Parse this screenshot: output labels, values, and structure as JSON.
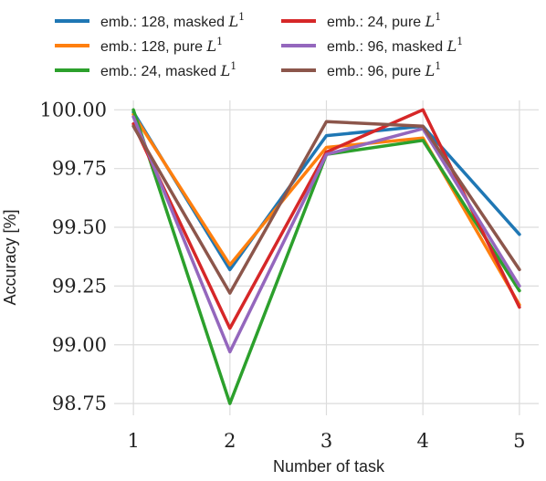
{
  "chart_data": {
    "type": "line",
    "title": "",
    "xlabel": "Number of task",
    "ylabel": "Accuracy [%]",
    "x": [
      1,
      2,
      3,
      4,
      5
    ],
    "x_tick_labels": [
      "1",
      "2",
      "3",
      "4",
      "5"
    ],
    "y_tick_labels": [
      "98.75",
      "99.00",
      "99.25",
      "99.50",
      "99.75",
      "100.00"
    ],
    "yticks": [
      98.75,
      99.0,
      99.25,
      99.5,
      99.75,
      100.0
    ],
    "xlim": [
      0.8,
      5.2
    ],
    "ylim": [
      98.7,
      100.04
    ],
    "grid": true,
    "legend_placement": "top, above plot, two columns",
    "series": [
      {
        "name": "emb.: 128, masked",
        "label_math": "L",
        "label_sup": "1",
        "color": "#1f77b4",
        "values": [
          99.99,
          99.32,
          99.89,
          99.93,
          99.47
        ]
      },
      {
        "name": "emb.: 128, pure",
        "label_math": "L",
        "label_sup": "1",
        "color": "#ff7f0e",
        "values": [
          99.98,
          99.34,
          99.84,
          99.88,
          99.17
        ]
      },
      {
        "name": "emb.: 24, masked",
        "label_math": "L",
        "label_sup": "1",
        "color": "#2ca02c",
        "values": [
          100.0,
          98.75,
          99.81,
          99.87,
          99.23
        ]
      },
      {
        "name": "emb.: 24, pure",
        "label_math": "L",
        "label_sup": "1",
        "color": "#d62728",
        "values": [
          99.94,
          99.07,
          99.82,
          100.0,
          99.16
        ]
      },
      {
        "name": "emb.: 96, masked",
        "label_math": "L",
        "label_sup": "1",
        "color": "#9467bd",
        "values": [
          99.97,
          98.97,
          99.81,
          99.92,
          99.25
        ]
      },
      {
        "name": "emb.: 96, pure",
        "label_math": "L",
        "label_sup": "1",
        "color": "#8c564b",
        "values": [
          99.93,
          99.22,
          99.95,
          99.93,
          99.32
        ]
      }
    ]
  }
}
